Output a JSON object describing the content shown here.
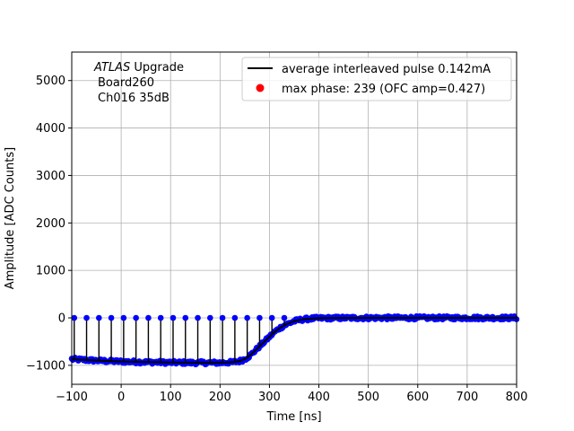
{
  "chart_data": {
    "type": "scatter",
    "title": "",
    "xlabel": "Time [ns]",
    "ylabel": "Amplitude [ADC Counts]",
    "xlim": [
      -100,
      800
    ],
    "ylim": [
      -1400,
      5600
    ],
    "x_ticks": [
      "−100",
      "0",
      "100",
      "200",
      "300",
      "400",
      "500",
      "600",
      "700",
      "800"
    ],
    "x_tick_values": [
      -100,
      0,
      100,
      200,
      300,
      400,
      500,
      600,
      700,
      800
    ],
    "y_ticks": [
      "−1000",
      "0",
      "1000",
      "2000",
      "3000",
      "4000",
      "5000"
    ],
    "y_tick_values": [
      -1000,
      0,
      1000,
      2000,
      3000,
      4000,
      5000
    ],
    "grid": true,
    "legend_position": "top-right",
    "annotation": {
      "line1_italic": "ATLAS",
      "line1_rest": " Upgrade",
      "line2": "Board260",
      "line3": "Ch016 35dB"
    },
    "legend": [
      {
        "label": "average interleaved pulse 0.142mA",
        "color": "#000000",
        "marker": "line"
      },
      {
        "label": "max phase: 239 (OFC amp=0.427)",
        "color": "#ff0000",
        "marker": "dot"
      }
    ],
    "series": [
      {
        "name": "average interleaved pulse 0.142mA",
        "color": "#000000",
        "x": [
          -100,
          -50,
          0,
          50,
          100,
          150,
          200,
          225,
          240,
          250,
          260,
          270,
          280,
          290,
          300,
          310,
          320,
          330,
          340,
          350,
          360,
          370,
          380,
          390,
          400,
          425,
          450,
          500,
          550,
          600,
          650,
          700,
          750,
          800
        ],
        "y": [
          -870,
          -900,
          -920,
          -930,
          -940,
          -945,
          -945,
          -935,
          -910,
          -870,
          -800,
          -700,
          -600,
          -500,
          -400,
          -300,
          -220,
          -160,
          -110,
          -70,
          -45,
          -30,
          -20,
          -12,
          -8,
          -4,
          -2,
          0,
          0,
          0,
          0,
          0,
          0,
          0
        ]
      },
      {
        "name": "samples",
        "color": "#0000ff",
        "spike_x": [
          -95,
          -70,
          -45,
          -20,
          5,
          30,
          55,
          80,
          105,
          130,
          155,
          180,
          205,
          230,
          255,
          280,
          305,
          330
        ],
        "spike_y": 0
      }
    ],
    "colors": {
      "samples": "#0000ff",
      "average": "#000000",
      "max_phase": "#ff0000",
      "grid": "#b0b0b0"
    }
  }
}
